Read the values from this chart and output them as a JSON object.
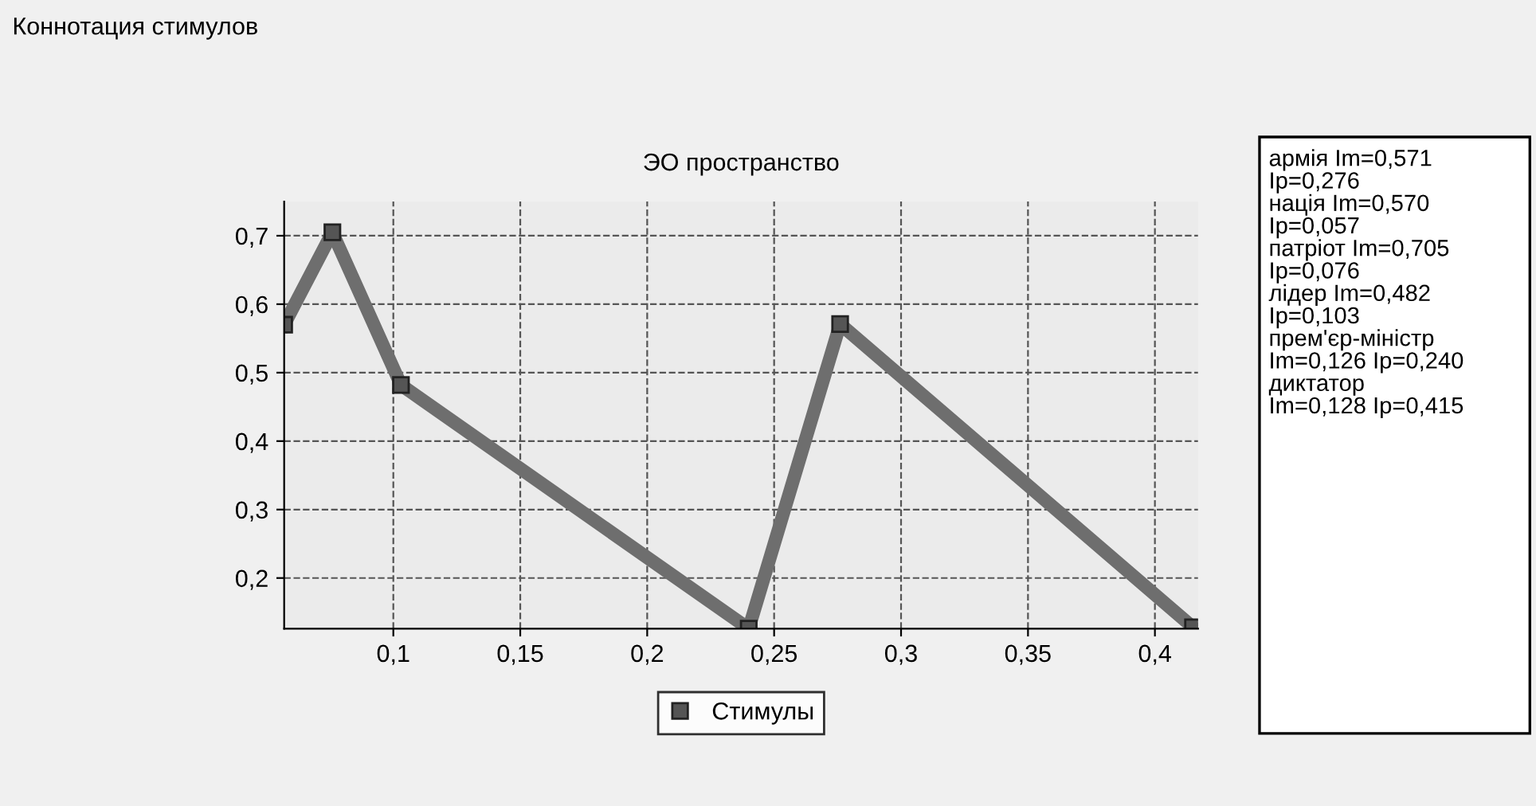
{
  "chart_data": {
    "type": "line",
    "title": "Коннотация стимулов",
    "subtitle": "ЭО пространство",
    "x": [
      0.057,
      0.076,
      0.103,
      0.24,
      0.276,
      0.415
    ],
    "series": [
      {
        "name": "Стимулы",
        "color": "#6e6e6e",
        "values": [
          0.57,
          0.705,
          0.482,
          0.126,
          0.571,
          0.128
        ]
      }
    ],
    "xlim": [
      0.057,
      0.417
    ],
    "ylim": [
      0.126,
      0.75
    ],
    "xticks": [
      {
        "value": 0.1,
        "label": "0,1"
      },
      {
        "value": 0.15,
        "label": "0,15"
      },
      {
        "value": 0.2,
        "label": "0,2"
      },
      {
        "value": 0.25,
        "label": "0,25"
      },
      {
        "value": 0.3,
        "label": "0,3"
      },
      {
        "value": 0.35,
        "label": "0,35"
      },
      {
        "value": 0.4,
        "label": "0,4"
      }
    ],
    "yticks": [
      {
        "value": 0.2,
        "label": "0,2"
      },
      {
        "value": 0.3,
        "label": "0,3"
      },
      {
        "value": 0.4,
        "label": "0,4"
      },
      {
        "value": 0.5,
        "label": "0,5"
      },
      {
        "value": 0.6,
        "label": "0,6"
      },
      {
        "value": 0.7,
        "label": "0,7"
      }
    ],
    "grid": true,
    "legend": "bottom",
    "marker": "square",
    "line_style": "solid",
    "annotations": [
      "армія Im=0,571\nIp=0,276",
      "нація Im=0,570\nIp=0,057",
      "патріот Im=0,705\nIp=0,076",
      "лідер Im=0,482\nIp=0,103",
      "прем'єр-міністр\nIm=0,126 Ip=0,240",
      "диктатор\nIm=0,128 Ip=0,415"
    ]
  }
}
